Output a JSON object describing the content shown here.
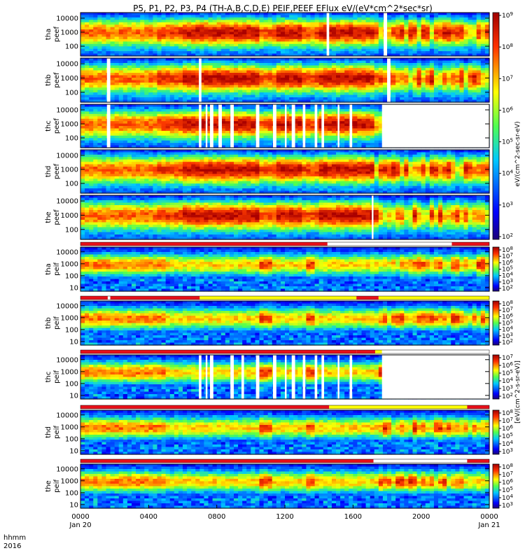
{
  "chart_data": {
    "type": "heatmap",
    "title": "P5, P1, P2, P3, P4 (TH-A,B,C,D,E) PEIF,PEEF EFlux eV/(eV*cm^2*sec*sr)",
    "x_axis": {
      "corner_label_line1": "hhmm",
      "corner_label_line2": "2016",
      "ticks": [
        {
          "time": "0000",
          "date": "Jan 20",
          "hour": 0
        },
        {
          "time": "0400",
          "date": "",
          "hour": 4
        },
        {
          "time": "0800",
          "date": "",
          "hour": 8
        },
        {
          "time": "1200",
          "date": "",
          "hour": 12
        },
        {
          "time": "1600",
          "date": "",
          "hour": 16
        },
        {
          "time": "2000",
          "date": "",
          "hour": 20
        },
        {
          "time": "0000",
          "date": "Jan 21",
          "hour": 24
        }
      ],
      "range_hours": [
        0,
        24
      ]
    },
    "colorbar_labels": {
      "electron": "eV/(cm^2-sec-sr-eV)",
      "ion": "[eV/(cm^2-s-sr-eV)]"
    },
    "colorbars": [
      {
        "id": "cb-electron",
        "panels": [
          0,
          4
        ],
        "ticks": [
          "10^2",
          "10^3",
          "10^4",
          "10^5",
          "10^6",
          "10^7",
          "10^8",
          "10^9"
        ]
      },
      {
        "id": "cb-ion-a",
        "panels": [
          5
        ],
        "ticks": [
          "10^2",
          "10^3",
          "10^4",
          "10^5",
          "10^6",
          "10^7",
          "10^8"
        ]
      },
      {
        "id": "cb-ion-b",
        "panels": [
          6
        ],
        "ticks": [
          "10^2",
          "10^3",
          "10^4",
          "10^5",
          "10^6",
          "10^7",
          "10^8"
        ]
      },
      {
        "id": "cb-ion-c",
        "panels": [
          7
        ],
        "ticks": [
          "10^2",
          "10^3",
          "10^4",
          "10^5",
          "10^6",
          "10^7"
        ]
      },
      {
        "id": "cb-ion-d",
        "panels": [
          8
        ],
        "ticks": [
          "10^3",
          "10^4",
          "10^5",
          "10^6",
          "10^7",
          "10^8"
        ]
      },
      {
        "id": "cb-ion-e",
        "panels": [
          9
        ],
        "ticks": [
          "10^3",
          "10^4",
          "10^5",
          "10^6",
          "10^7",
          "10^8"
        ]
      }
    ],
    "panels": [
      {
        "label_line1": "tha",
        "label_line2": "peef",
        "species": "electron",
        "yticks": [
          "10000",
          "1000",
          "100"
        ],
        "ylim_eV": [
          20,
          25000
        ],
        "gaps": [
          [
            14.45,
            14.6
          ],
          [
            17.8,
            18.0
          ]
        ],
        "nodata_after": null
      },
      {
        "label_line1": "thb",
        "label_line2": "peef",
        "species": "electron",
        "yticks": [
          "10000",
          "1000",
          "100"
        ],
        "ylim_eV": [
          20,
          25000
        ],
        "gaps": [
          [
            1.55,
            1.75
          ],
          [
            6.95,
            7.1
          ],
          [
            18.0,
            18.2
          ]
        ],
        "nodata_after": null
      },
      {
        "label_line1": "thc",
        "label_line2": "peef",
        "species": "electron",
        "yticks": [
          "10000",
          "1000",
          "100"
        ],
        "ylim_eV": [
          20,
          25000
        ],
        "gaps": [
          [
            1.55,
            1.75
          ],
          [
            6.95,
            7.1
          ],
          [
            7.35,
            7.45
          ],
          [
            7.6,
            7.8
          ],
          [
            8.1,
            8.3
          ],
          [
            8.8,
            9.0
          ],
          [
            10.3,
            10.5
          ],
          [
            11.3,
            11.5
          ],
          [
            12.0,
            12.1
          ],
          [
            12.4,
            12.6
          ],
          [
            13.05,
            13.2
          ],
          [
            13.75,
            13.9
          ],
          [
            14.15,
            14.3
          ],
          [
            15.1,
            15.2
          ],
          [
            15.8,
            15.95
          ]
        ],
        "nodata_after": 17.7
      },
      {
        "label_line1": "thd",
        "label_line2": "peef",
        "species": "electron",
        "yticks": [
          "10000",
          "1000",
          "100"
        ],
        "ylim_eV": [
          20,
          25000
        ],
        "gaps": [],
        "nodata_after": null
      },
      {
        "label_line1": "the",
        "label_line2": "peef",
        "species": "electron",
        "yticks": [
          "10000",
          "1000",
          "100"
        ],
        "ylim_eV": [
          20,
          25000
        ],
        "gaps": [
          [
            17.1,
            17.2
          ]
        ],
        "nodata_after": null
      },
      {
        "label_line1": "tha",
        "label_line2": "peif",
        "species": "ion",
        "yticks": [
          "10000",
          "1000",
          "100",
          "10"
        ],
        "ylim_eV": [
          5,
          25000
        ],
        "gaps": [],
        "nodata_after": null
      },
      {
        "label_line1": "thb",
        "label_line2": "peif",
        "species": "ion",
        "yticks": [
          "10000",
          "1000",
          "100",
          "10"
        ],
        "ylim_eV": [
          5,
          25000
        ],
        "gaps": [],
        "nodata_after": null
      },
      {
        "label_line1": "thc",
        "label_line2": "peif",
        "species": "ion",
        "yticks": [
          "10000",
          "1000",
          "100",
          "10"
        ],
        "ylim_eV": [
          5,
          25000
        ],
        "gaps": [
          [
            6.95,
            7.1
          ],
          [
            7.35,
            7.45
          ],
          [
            7.6,
            7.8
          ],
          [
            8.8,
            9.0
          ],
          [
            9.45,
            9.6
          ],
          [
            10.3,
            10.5
          ],
          [
            11.3,
            11.5
          ],
          [
            12.0,
            12.1
          ],
          [
            12.4,
            12.6
          ],
          [
            13.05,
            13.2
          ],
          [
            13.75,
            13.9
          ],
          [
            14.15,
            14.3
          ],
          [
            15.1,
            15.2
          ],
          [
            15.8,
            15.95
          ]
        ],
        "nodata_after": 17.7
      },
      {
        "label_line1": "thd",
        "label_line2": "peif",
        "species": "ion",
        "yticks": [
          "10000",
          "1000",
          "100",
          "10"
        ],
        "ylim_eV": [
          5,
          25000
        ],
        "gaps": [],
        "nodata_after": null
      },
      {
        "label_line1": "the",
        "label_line2": "peif",
        "species": "ion",
        "yticks": [
          "10000",
          "1000",
          "100",
          "10"
        ],
        "ylim_eV": [
          5,
          25000
        ],
        "gaps": [],
        "nodata_after": null
      }
    ],
    "mode_bars": [
      {
        "above_panel": 5,
        "segments": [
          {
            "from": 0,
            "to": 14.5,
            "color": "#e8101a"
          },
          {
            "from": 14.5,
            "to": 21.8,
            "color": "#ffffff"
          },
          {
            "from": 21.8,
            "to": 24,
            "color": "#e8101a"
          }
        ]
      },
      {
        "above_panel": 6,
        "segments": [
          {
            "from": 0,
            "to": 1.6,
            "color": "#e8101a"
          },
          {
            "from": 1.6,
            "to": 1.75,
            "color": "#ffffff"
          },
          {
            "from": 1.75,
            "to": 7.0,
            "color": "#e8101a"
          },
          {
            "from": 7.0,
            "to": 16.2,
            "color": "#ffff00"
          },
          {
            "from": 16.2,
            "to": 17.5,
            "color": "#e8101a"
          },
          {
            "from": 17.5,
            "to": 24,
            "color": "#ffff00"
          }
        ]
      },
      {
        "above_panel": 7,
        "segments": [
          {
            "from": 0,
            "to": 16.2,
            "color": "#e8101a"
          },
          {
            "from": 16.2,
            "to": 17.3,
            "color": "#e8101a"
          },
          {
            "from": 17.3,
            "to": 17.7,
            "color": "#ffff00"
          },
          {
            "from": 17.7,
            "to": 24,
            "color": "#ffffff"
          }
        ]
      },
      {
        "above_panel": 8,
        "segments": [
          {
            "from": 0,
            "to": 14.6,
            "color": "#e8101a"
          },
          {
            "from": 14.6,
            "to": 22.7,
            "color": "#ffff00"
          },
          {
            "from": 22.7,
            "to": 24,
            "color": "#e8101a"
          }
        ]
      },
      {
        "above_panel": 9,
        "segments": [
          {
            "from": 0,
            "to": 17.2,
            "color": "#e8101a"
          },
          {
            "from": 17.2,
            "to": 22.7,
            "color": "#ffffff"
          },
          {
            "from": 22.7,
            "to": 24,
            "color": "#e8101a"
          }
        ]
      }
    ]
  }
}
